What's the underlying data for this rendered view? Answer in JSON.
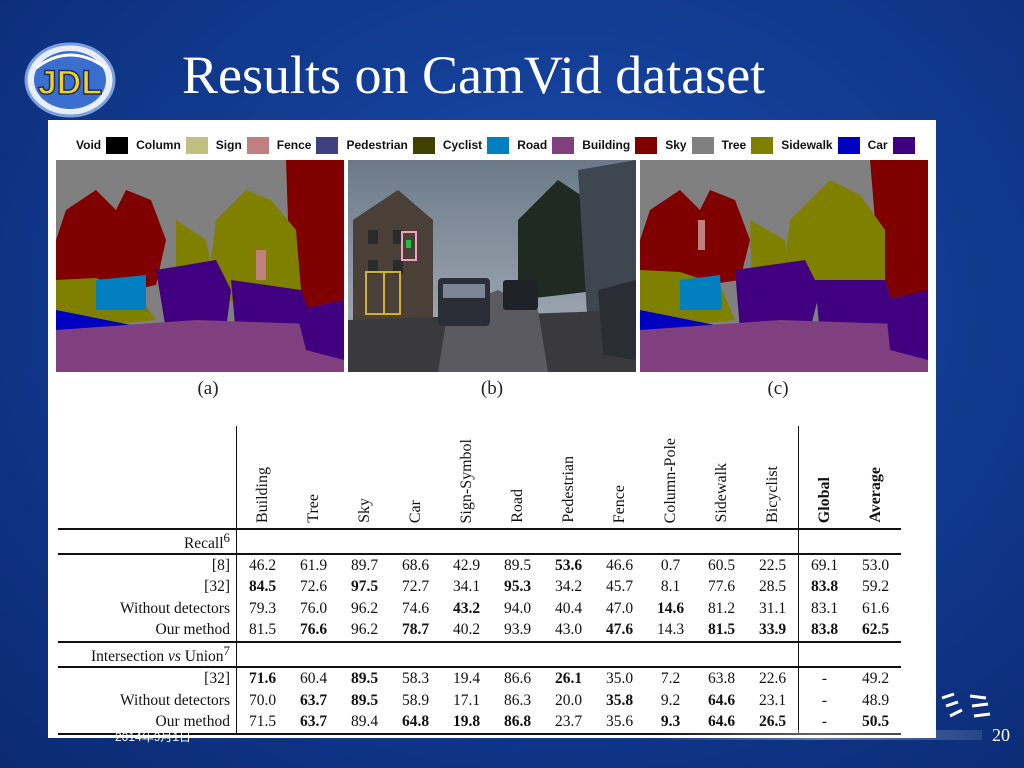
{
  "slide": {
    "title": "Results on CamVid dataset",
    "logo_text": "JDL",
    "date": "2014年9月1日",
    "page_number": "20"
  },
  "legend": [
    {
      "label": "Void",
      "color": "#000000"
    },
    {
      "label": "Column",
      "color": "#c0c080"
    },
    {
      "label": "Sign",
      "color": "#c08080"
    },
    {
      "label": "Fence",
      "color": "#404080"
    },
    {
      "label": "Pedestrian",
      "color": "#404000"
    },
    {
      "label": "Cyclist",
      "color": "#0080c0"
    },
    {
      "label": "Road",
      "color": "#804080"
    },
    {
      "label": "Building",
      "color": "#800000"
    },
    {
      "label": "Sky",
      "color": "#808080"
    },
    {
      "label": "Tree",
      "color": "#808000"
    },
    {
      "label": "Sidewalk",
      "color": "#0000c0"
    },
    {
      "label": "Car",
      "color": "#400080"
    }
  ],
  "panels": [
    {
      "caption": "(a)"
    },
    {
      "caption": "(b)"
    },
    {
      "caption": "(c)"
    }
  ],
  "table": {
    "columns": [
      "Building",
      "Tree",
      "Sky",
      "Car",
      "Sign-Symbol",
      "Road",
      "Pedestrian",
      "Fence",
      "Column-Pole",
      "Sidewalk",
      "Bicyclist",
      "Global",
      "Average"
    ],
    "recall_section": {
      "label": "Recall",
      "sup": "6"
    },
    "recall_rows": [
      {
        "label": "[8]",
        "values": [
          "46.2",
          "61.9",
          "89.7",
          "68.6",
          "42.9",
          "89.5",
          "53.6",
          "46.6",
          "0.7",
          "60.5",
          "22.5",
          "69.1",
          "53.0"
        ],
        "bold": [
          6
        ]
      },
      {
        "label": "[32]",
        "values": [
          "84.5",
          "72.6",
          "97.5",
          "72.7",
          "34.1",
          "95.3",
          "34.2",
          "45.7",
          "8.1",
          "77.6",
          "28.5",
          "83.8",
          "59.2"
        ],
        "bold": [
          0,
          2,
          5,
          11
        ]
      },
      {
        "label": "Without detectors",
        "values": [
          "79.3",
          "76.0",
          "96.2",
          "74.6",
          "43.2",
          "94.0",
          "40.4",
          "47.0",
          "14.6",
          "81.2",
          "31.1",
          "83.1",
          "61.6"
        ],
        "bold": [
          4,
          8
        ]
      },
      {
        "label": "Our method",
        "values": [
          "81.5",
          "76.6",
          "96.2",
          "78.7",
          "40.2",
          "93.9",
          "43.0",
          "47.6",
          "14.3",
          "81.5",
          "33.9",
          "83.8",
          "62.5"
        ],
        "bold": [
          1,
          3,
          7,
          9,
          10,
          11,
          12
        ]
      }
    ],
    "iou_section": {
      "label_pre": "Intersection ",
      "label_em": "vs",
      "label_post": " Union",
      "sup": "7"
    },
    "iou_rows": [
      {
        "label": "[32]",
        "values": [
          "71.6",
          "60.4",
          "89.5",
          "58.3",
          "19.4",
          "86.6",
          "26.1",
          "35.0",
          "7.2",
          "63.8",
          "22.6",
          "-",
          "49.2"
        ],
        "bold": [
          0,
          2,
          6
        ]
      },
      {
        "label": "Without detectors",
        "values": [
          "70.0",
          "63.7",
          "89.5",
          "58.9",
          "17.1",
          "86.3",
          "20.0",
          "35.8",
          "9.2",
          "64.6",
          "23.1",
          "-",
          "48.9"
        ],
        "bold": [
          1,
          2,
          7,
          9
        ]
      },
      {
        "label": "Our method",
        "values": [
          "71.5",
          "63.7",
          "89.4",
          "64.8",
          "19.8",
          "86.8",
          "23.7",
          "35.6",
          "9.3",
          "64.6",
          "26.5",
          "-",
          "50.5"
        ],
        "bold": [
          1,
          3,
          4,
          5,
          8,
          9,
          10,
          12
        ]
      }
    ]
  }
}
